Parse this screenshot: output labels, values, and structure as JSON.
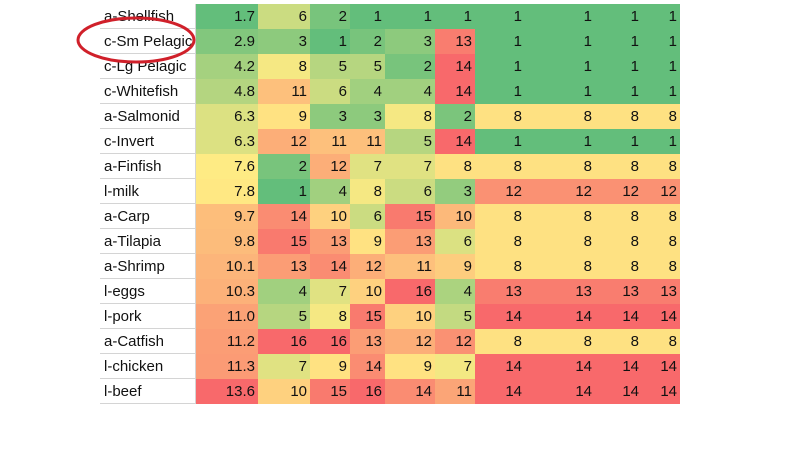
{
  "table": {
    "rows": [
      [
        "a-Shellfish",
        "1.7",
        "6",
        "2",
        "1",
        "1",
        "1",
        "1",
        "1",
        "1",
        "1"
      ],
      [
        "c-Sm Pelagic",
        "2.9",
        "3",
        "1",
        "2",
        "3",
        "13",
        "1",
        "1",
        "1",
        "1"
      ],
      [
        "c-Lg Pelagic",
        "4.2",
        "8",
        "5",
        "5",
        "2",
        "14",
        "1",
        "1",
        "1",
        "1"
      ],
      [
        "c-Whitefish",
        "4.8",
        "11",
        "6",
        "4",
        "4",
        "14",
        "1",
        "1",
        "1",
        "1"
      ],
      [
        "a-Salmonid",
        "6.3",
        "9",
        "3",
        "3",
        "8",
        "2",
        "8",
        "8",
        "8",
        "8"
      ],
      [
        "c-Invert",
        "6.3",
        "12",
        "11",
        "11",
        "5",
        "14",
        "1",
        "1",
        "1",
        "1"
      ],
      [
        "a-Finfish",
        "7.6",
        "2",
        "12",
        "7",
        "7",
        "8",
        "8",
        "8",
        "8",
        "8"
      ],
      [
        "l-milk",
        "7.8",
        "1",
        "4",
        "8",
        "6",
        "3",
        "12",
        "12",
        "12",
        "12"
      ],
      [
        "a-Carp",
        "9.7",
        "14",
        "10",
        "6",
        "15",
        "10",
        "8",
        "8",
        "8",
        "8"
      ],
      [
        "a-Tilapia",
        "9.8",
        "15",
        "13",
        "9",
        "13",
        "6",
        "8",
        "8",
        "8",
        "8"
      ],
      [
        "a-Shrimp",
        "10.1",
        "13",
        "14",
        "12",
        "11",
        "9",
        "8",
        "8",
        "8",
        "8"
      ],
      [
        "l-eggs",
        "10.3",
        "4",
        "7",
        "10",
        "16",
        "4",
        "13",
        "13",
        "13",
        "13"
      ],
      [
        "l-pork",
        "11.0",
        "5",
        "8",
        "15",
        "10",
        "5",
        "14",
        "14",
        "14",
        "14"
      ],
      [
        "a-Catfish",
        "11.2",
        "16",
        "16",
        "13",
        "12",
        "12",
        "8",
        "8",
        "8",
        "8"
      ],
      [
        "l-chicken",
        "11.3",
        "7",
        "9",
        "14",
        "9",
        "7",
        "14",
        "14",
        "14",
        "14"
      ],
      [
        "l-beef",
        "13.6",
        "10",
        "15",
        "16",
        "14",
        "11",
        "14",
        "14",
        "14",
        "14"
      ]
    ]
  }
}
